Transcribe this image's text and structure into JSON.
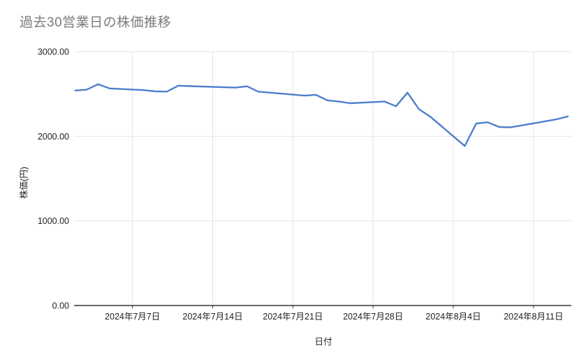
{
  "chart_data": {
    "type": "line",
    "title": "過去30営業日の株価推移",
    "xlabel": "日付",
    "ylabel": "株価(円)",
    "ylim": [
      0,
      3000
    ],
    "x_range_days": [
      -0.1,
      43.3
    ],
    "grid": true,
    "legend": "none",
    "yticks": [
      {
        "value": 0,
        "label": "0.00"
      },
      {
        "value": 1000,
        "label": "1000.00"
      },
      {
        "value": 2000,
        "label": "2000.00"
      },
      {
        "value": 3000,
        "label": "3000.00"
      }
    ],
    "x_gridlines": [
      {
        "day": 5,
        "label": "2024年7月7日"
      },
      {
        "day": 12,
        "label": "2024年7月14日"
      },
      {
        "day": 19,
        "label": "2024年7月21日"
      },
      {
        "day": 26,
        "label": "2024年7月28日"
      },
      {
        "day": 33,
        "label": "2024年8月4日"
      },
      {
        "day": 40,
        "label": "2024年8月11日"
      }
    ],
    "series": [
      {
        "name": "株価",
        "color": "#4e7fcb",
        "points": [
          {
            "date": "2024-07-02",
            "day": 0,
            "value": 2540
          },
          {
            "date": "2024-07-03",
            "day": 1,
            "value": 2550
          },
          {
            "date": "2024-07-04",
            "day": 2,
            "value": 2615
          },
          {
            "date": "2024-07-05",
            "day": 3,
            "value": 2565
          },
          {
            "date": "2024-07-08",
            "day": 6,
            "value": 2545
          },
          {
            "date": "2024-07-09",
            "day": 7,
            "value": 2530
          },
          {
            "date": "2024-07-10",
            "day": 8,
            "value": 2528
          },
          {
            "date": "2024-07-11",
            "day": 9,
            "value": 2598
          },
          {
            "date": "2024-07-12",
            "day": 10,
            "value": 2592
          },
          {
            "date": "2024-07-16",
            "day": 14,
            "value": 2575
          },
          {
            "date": "2024-07-17",
            "day": 15,
            "value": 2590
          },
          {
            "date": "2024-07-18",
            "day": 16,
            "value": 2525
          },
          {
            "date": "2024-07-19",
            "day": 17,
            "value": 2515
          },
          {
            "date": "2024-07-22",
            "day": 20,
            "value": 2480
          },
          {
            "date": "2024-07-23",
            "day": 21,
            "value": 2490
          },
          {
            "date": "2024-07-24",
            "day": 22,
            "value": 2425
          },
          {
            "date": "2024-07-25",
            "day": 23,
            "value": 2410
          },
          {
            "date": "2024-07-26",
            "day": 24,
            "value": 2390
          },
          {
            "date": "2024-07-29",
            "day": 27,
            "value": 2410
          },
          {
            "date": "2024-07-30",
            "day": 28,
            "value": 2355
          },
          {
            "date": "2024-07-31",
            "day": 29,
            "value": 2515
          },
          {
            "date": "2024-08-01",
            "day": 30,
            "value": 2320
          },
          {
            "date": "2024-08-02",
            "day": 31,
            "value": 2230
          },
          {
            "date": "2024-08-05",
            "day": 34,
            "value": 1885
          },
          {
            "date": "2024-08-06",
            "day": 35,
            "value": 2150
          },
          {
            "date": "2024-08-07",
            "day": 36,
            "value": 2165
          },
          {
            "date": "2024-08-08",
            "day": 37,
            "value": 2110
          },
          {
            "date": "2024-08-09",
            "day": 38,
            "value": 2105
          },
          {
            "date": "2024-08-13",
            "day": 42,
            "value": 2200
          },
          {
            "date": "2024-08-14",
            "day": 43,
            "value": 2235
          }
        ]
      }
    ],
    "colors": {
      "line": "#4e7fcb",
      "grid": "#e4e4e4",
      "axis_line": "#333333",
      "tick_label": "#222222",
      "title": "#7b7b7b"
    }
  }
}
